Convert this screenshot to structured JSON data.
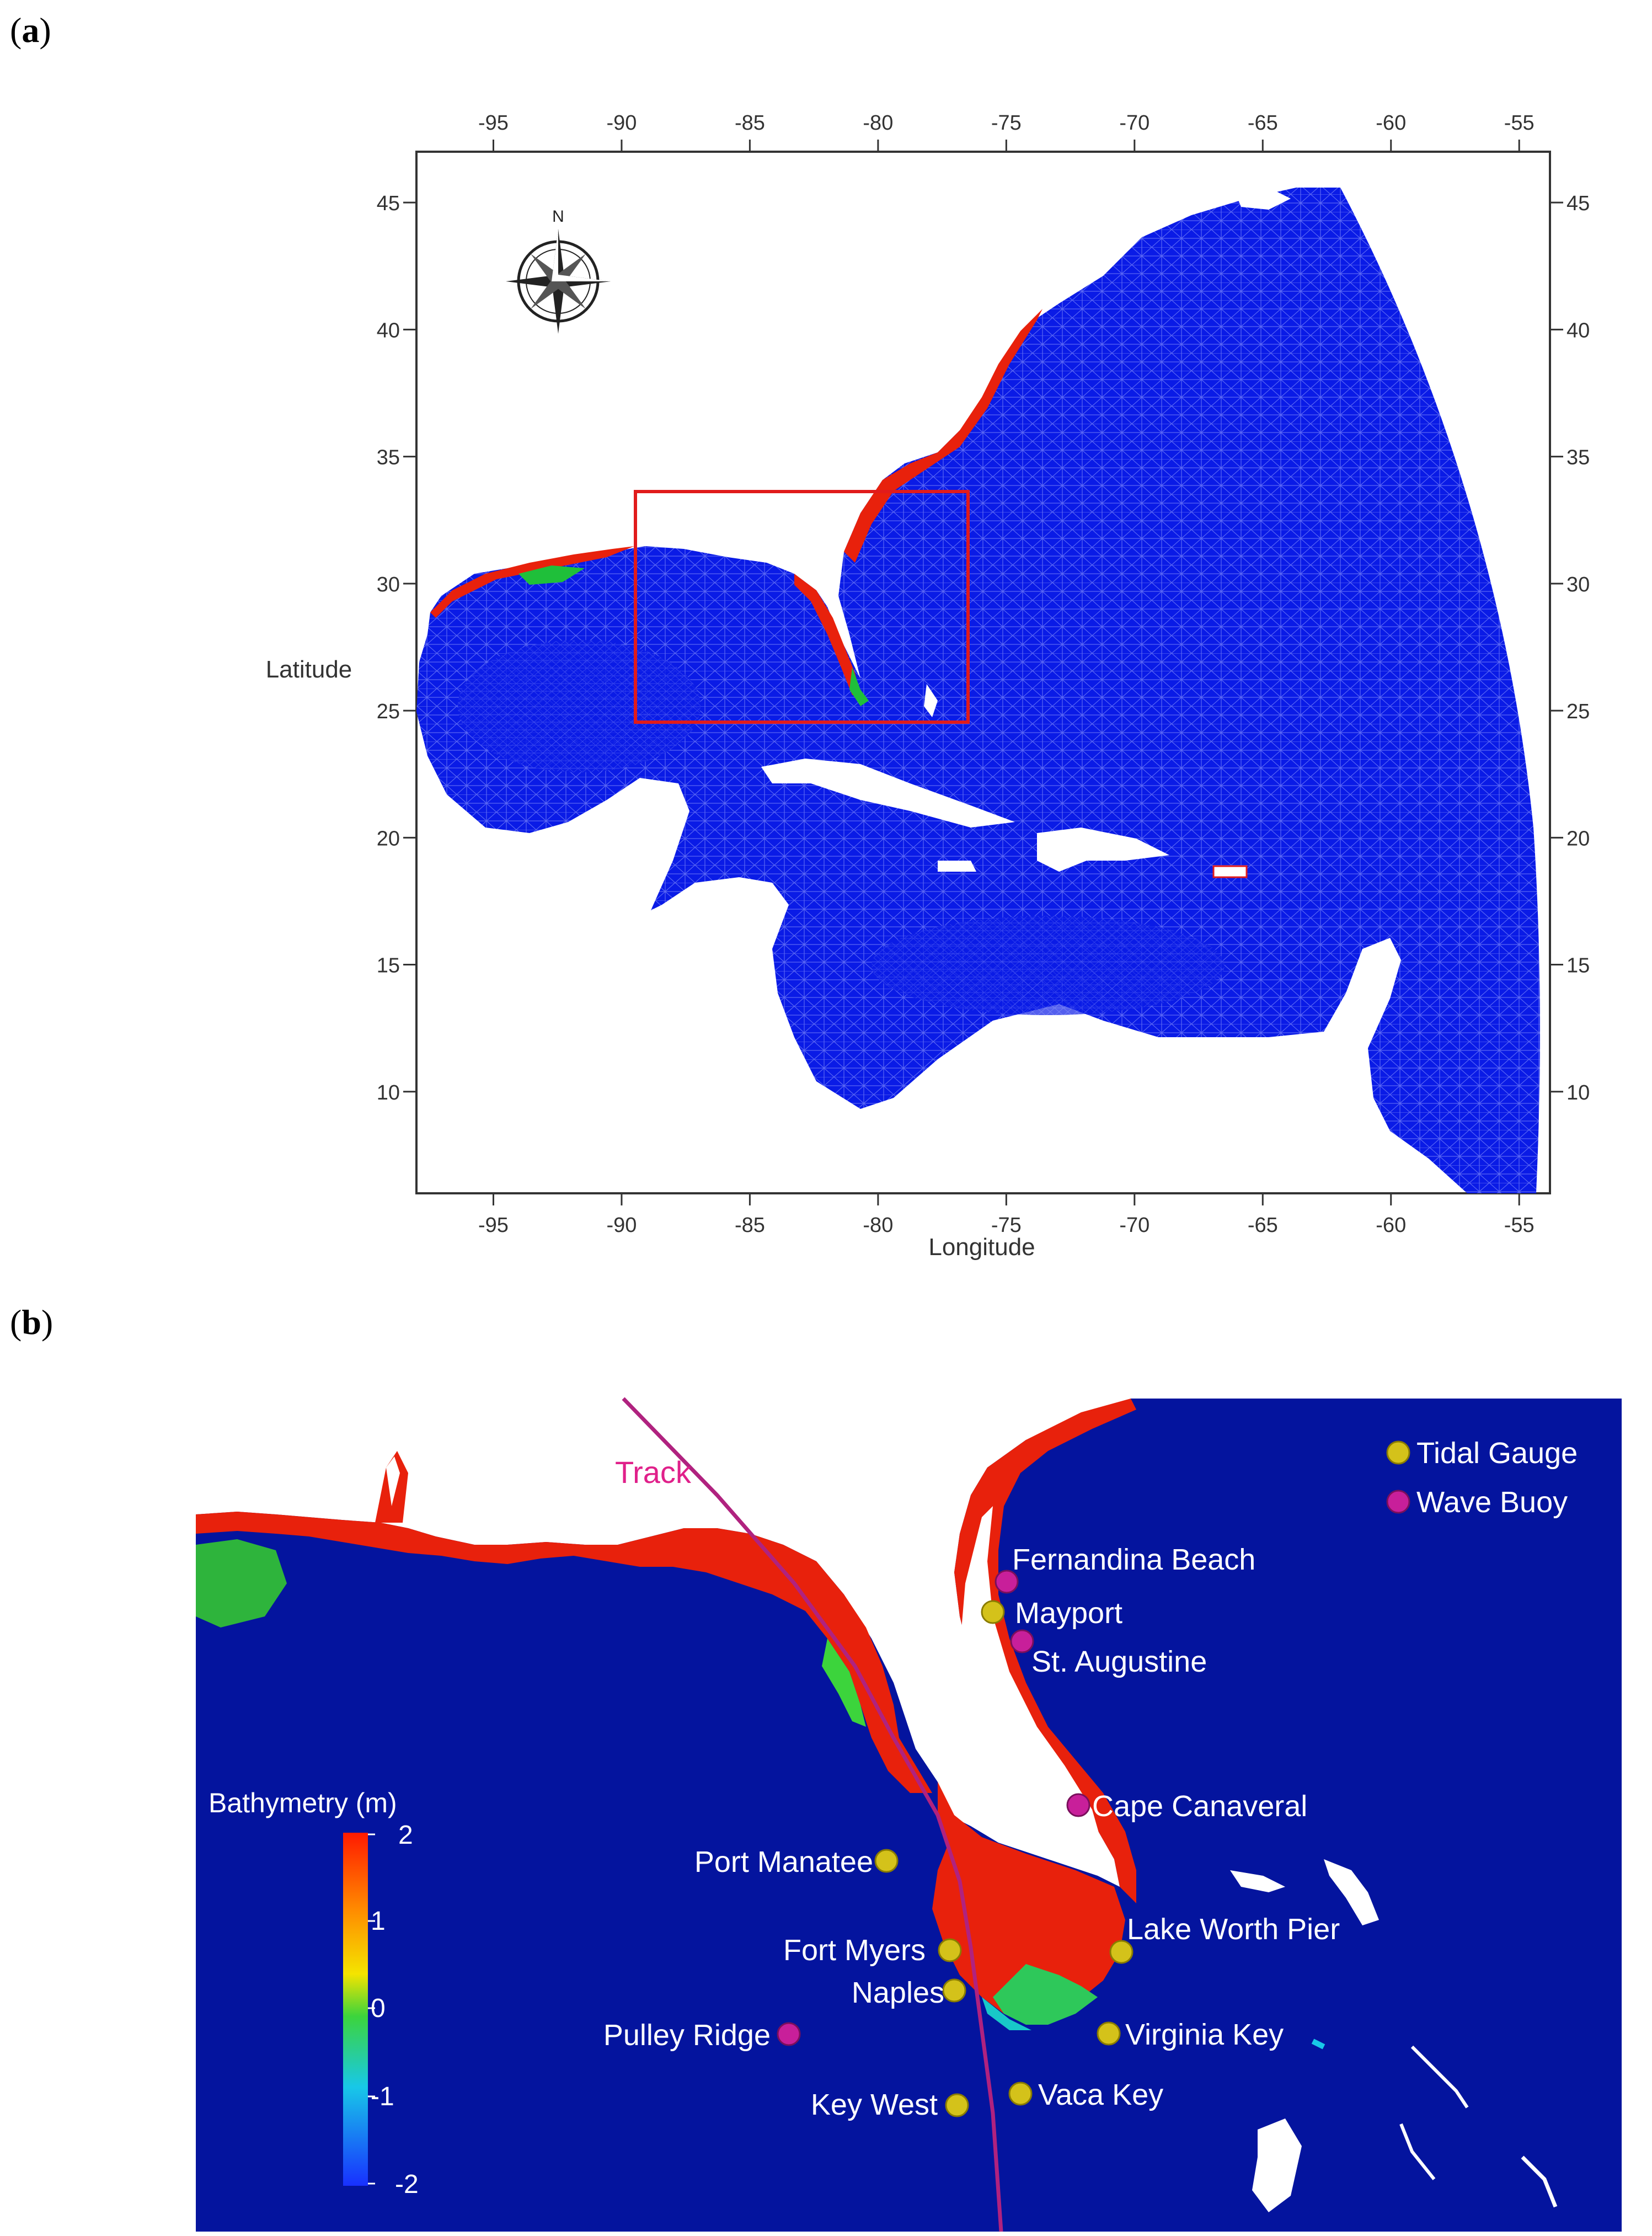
{
  "figure": {
    "panel_a_label": "a",
    "panel_b_label": "b"
  },
  "panel_a": {
    "xlabel": "Longitude",
    "ylabel": "Latitude",
    "x_ticks": [
      -95,
      -90,
      -85,
      -80,
      -75,
      -70,
      -65,
      -60,
      -55
    ],
    "y_ticks": [
      45,
      40,
      35,
      30,
      25,
      20,
      15,
      10
    ],
    "xlim": [
      -98,
      -53.8
    ],
    "ylim": [
      6.0,
      47.0
    ],
    "compass_label": "N",
    "study_box": {
      "lon": [
        -89.5,
        -76.5
      ],
      "lat": [
        24.0,
        33.0
      ],
      "color": "#e11b1b"
    },
    "mesh_color": "#0a1be6"
  },
  "panel_b": {
    "track_label": "Track",
    "colorbar": {
      "title": "Bathymetry (m)",
      "ticks": [
        "2",
        "1",
        "0",
        "-1",
        "-2"
      ]
    },
    "legend": [
      {
        "label": "Tidal Gauge",
        "color": "#d4c21a"
      },
      {
        "label": "Wave Buoy",
        "color": "#c81f9a"
      }
    ],
    "stations": [
      {
        "name": "Fernandina Beach",
        "type": "buoy"
      },
      {
        "name": "Mayport",
        "type": "gauge"
      },
      {
        "name": "St. Augustine",
        "type": "buoy"
      },
      {
        "name": "Cape Canaveral",
        "type": "buoy"
      },
      {
        "name": "Port Manatee",
        "type": "gauge"
      },
      {
        "name": "Lake Worth Pier",
        "type": "gauge"
      },
      {
        "name": "Fort Myers",
        "type": "gauge"
      },
      {
        "name": "Naples",
        "type": "gauge"
      },
      {
        "name": "Pulley Ridge",
        "type": "buoy"
      },
      {
        "name": "Virginia Key",
        "type": "gauge"
      },
      {
        "name": "Key West",
        "type": "gauge"
      },
      {
        "name": "Vaca Key",
        "type": "gauge"
      }
    ],
    "ocean_color": "#04149e",
    "shelf_color": "#e8210c",
    "track_color": "#b0227f"
  }
}
